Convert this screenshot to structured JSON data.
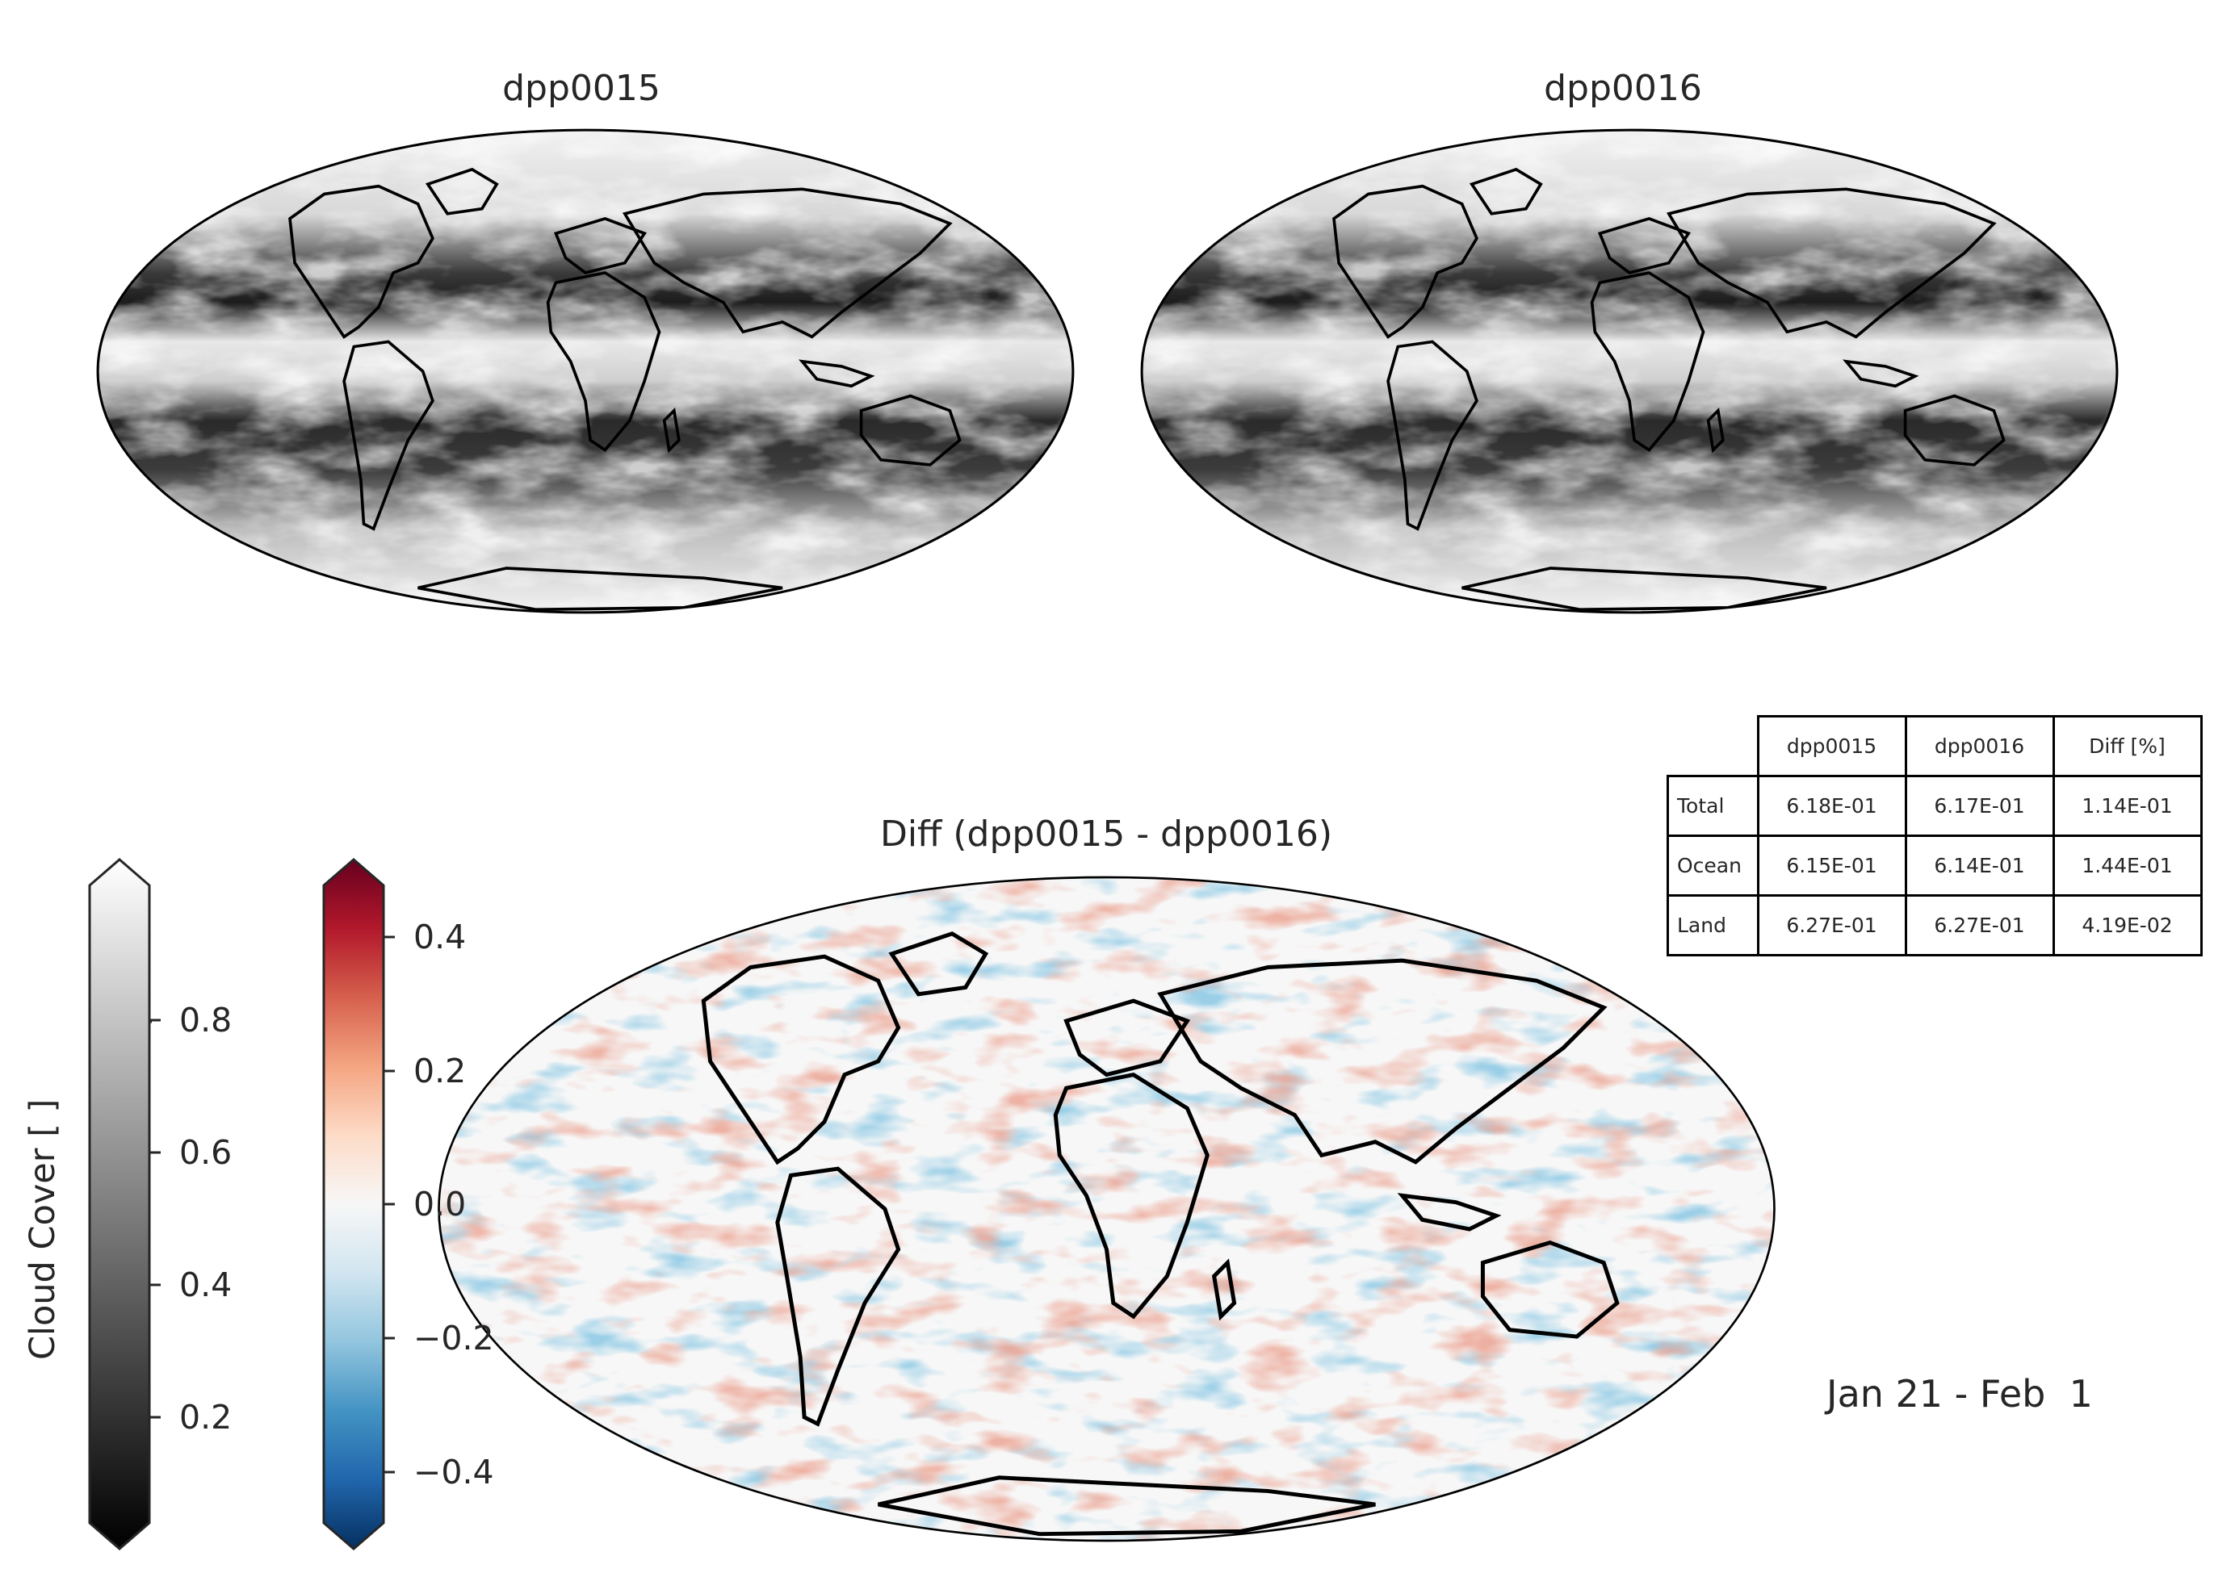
{
  "panels": {
    "left_title": "dpp0015",
    "right_title": "dpp0016",
    "diff_title": "Diff (dpp0015 - dpp0016)"
  },
  "colorbar_cloud": {
    "label": "Cloud Cover [ ]",
    "colormap": "greys",
    "ticks": [
      "0.2",
      "0.4",
      "0.6",
      "0.8"
    ],
    "range": [
      0.05,
      0.98
    ]
  },
  "colorbar_diff": {
    "colormap": "RdBu_r",
    "ticks": [
      "−0.4",
      "−0.2",
      "0.0",
      "0.2",
      "0.4"
    ],
    "range": [
      -0.47,
      0.47
    ]
  },
  "stats_table": {
    "columns": [
      "dpp0015",
      "dpp0016",
      "Diff [%]"
    ],
    "rows": [
      {
        "label": "Total",
        "values": [
          "6.18E-01",
          "6.17E-01",
          "1.14E-01"
        ]
      },
      {
        "label": "Ocean",
        "values": [
          "6.15E-01",
          "6.14E-01",
          "1.44E-01"
        ]
      },
      {
        "label": "Land",
        "values": [
          "6.27E-01",
          "6.27E-01",
          "4.19E-02"
        ]
      }
    ]
  },
  "date_range": "Jan 21 - Feb  1",
  "colors": {
    "diff_positive": "#b2182b",
    "diff_negative": "#2166ac",
    "coastline": "#000000"
  }
}
